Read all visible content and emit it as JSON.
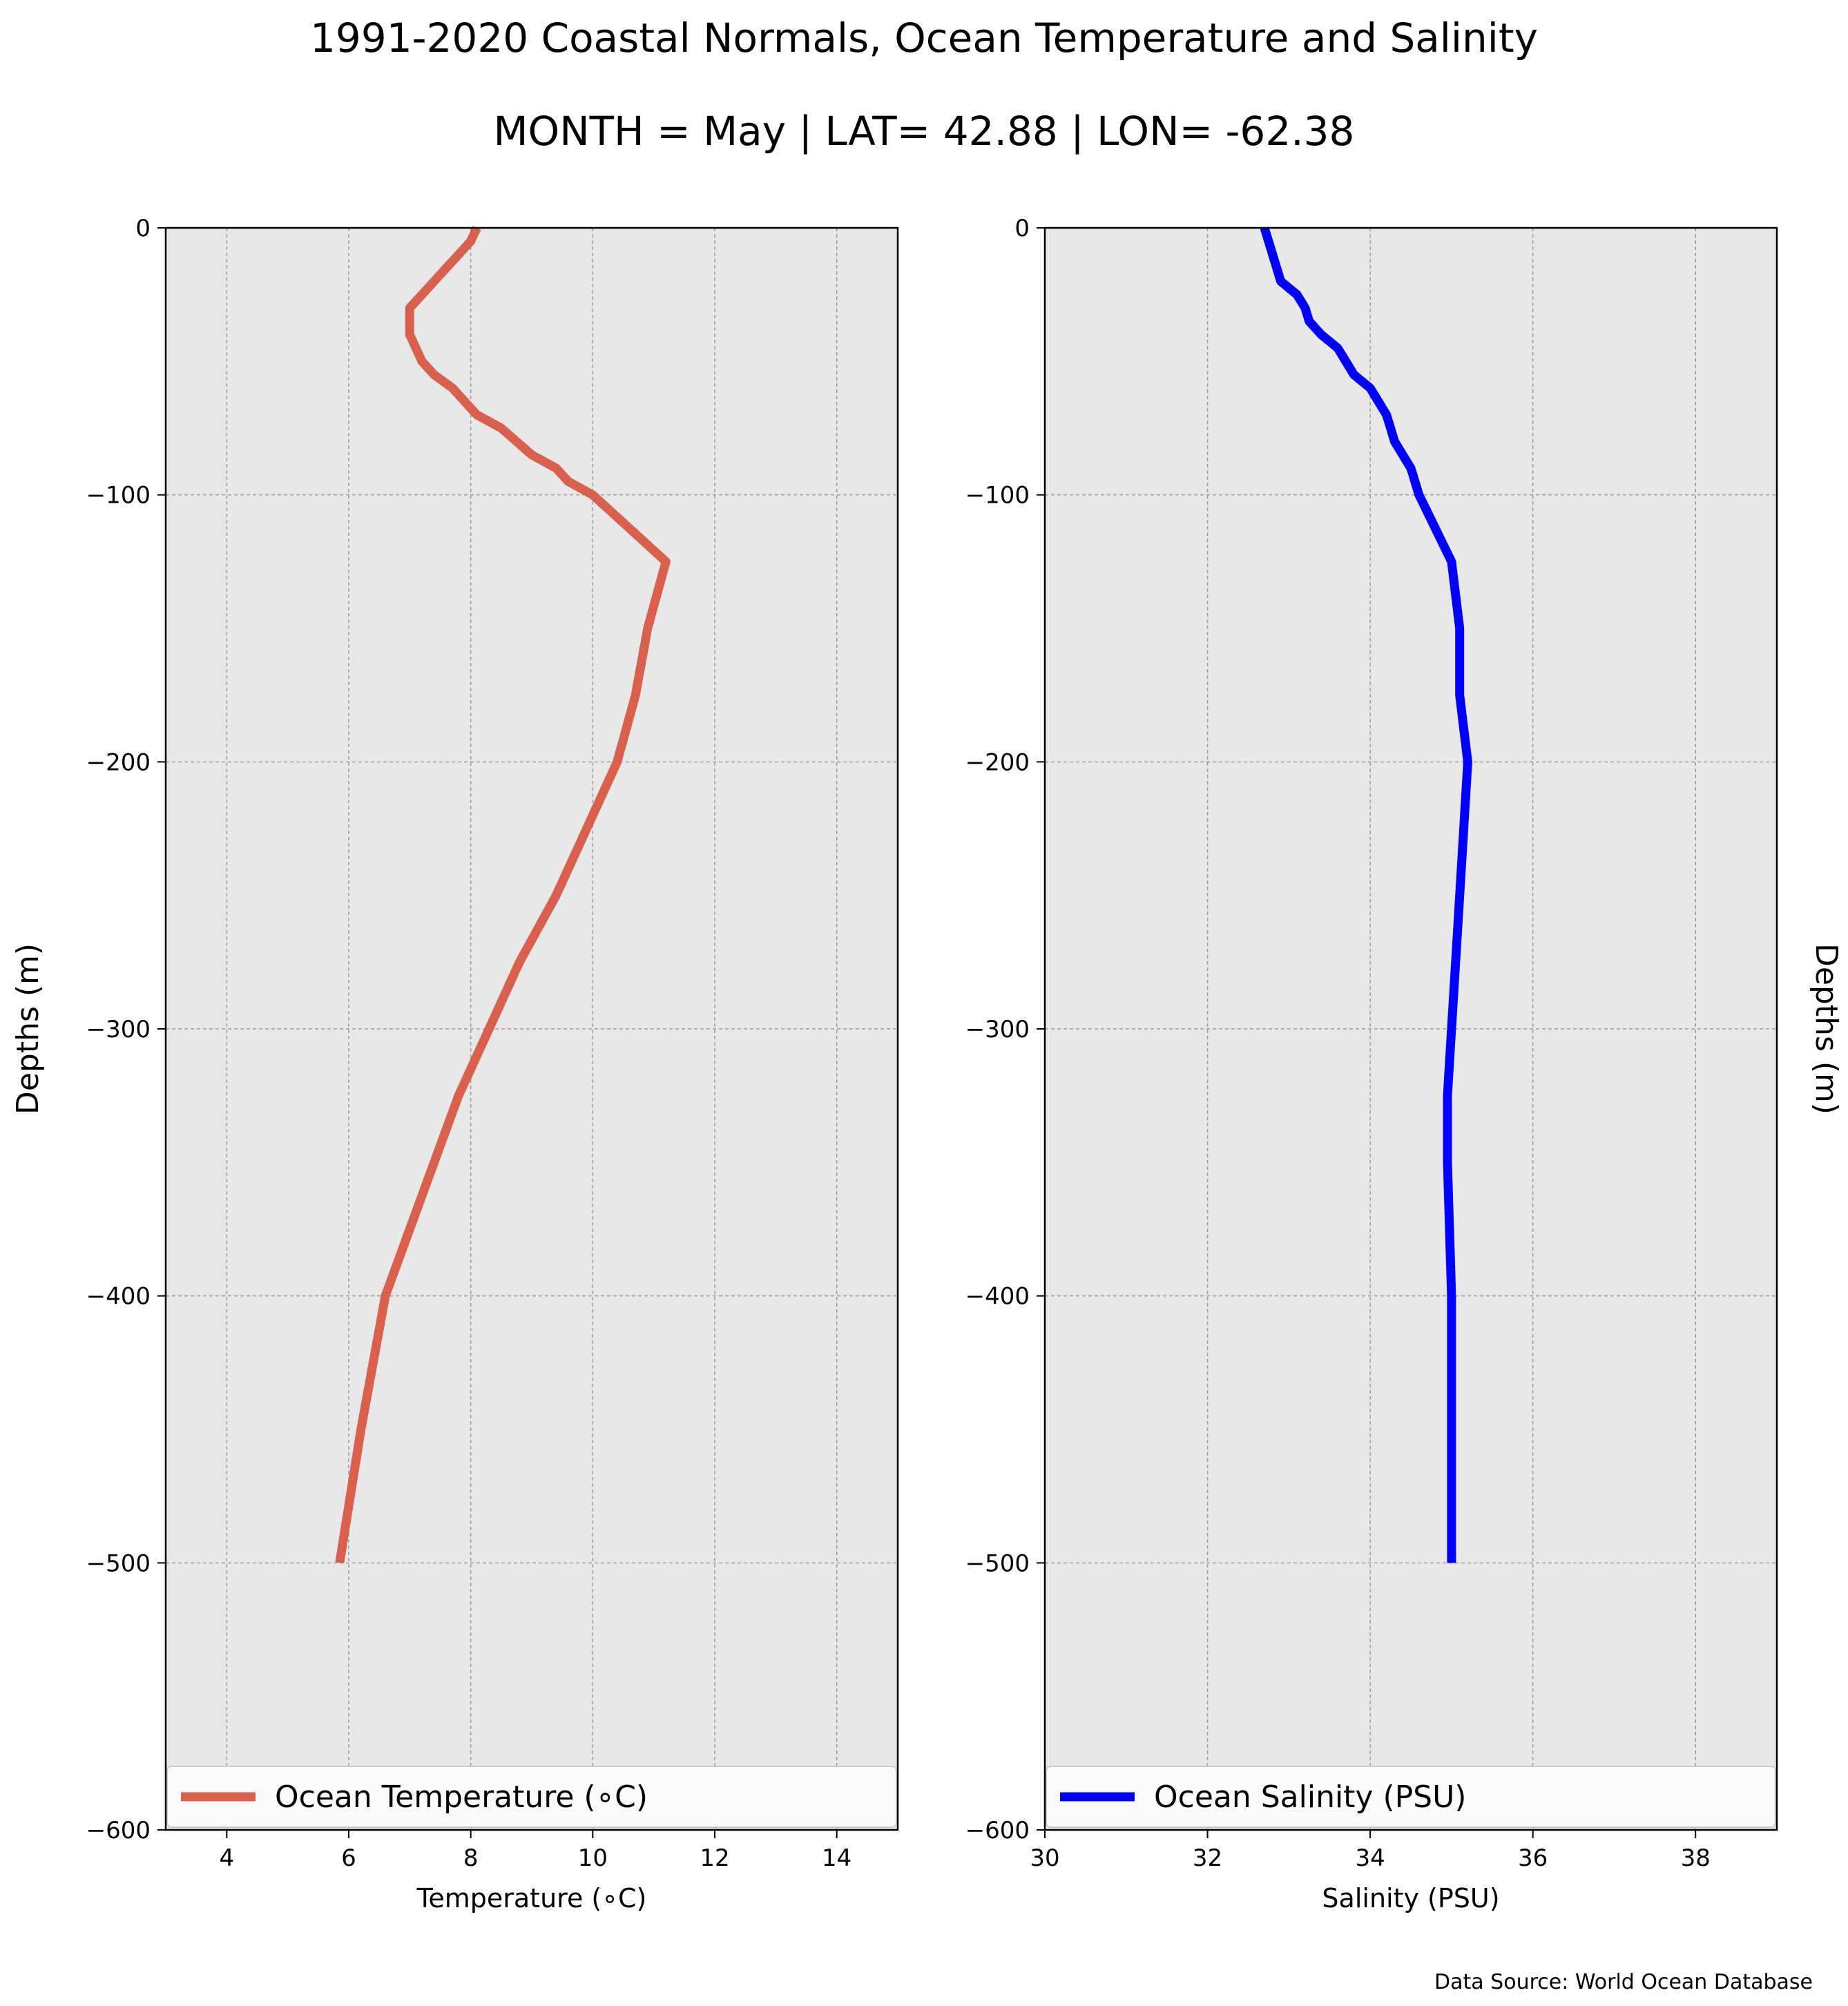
{
  "figure": {
    "title": "1991-2020 Coastal Normals, Ocean Temperature and Salinity",
    "subtitle": "MONTH = May | LAT= 42.88 | LON= -62.38",
    "source": "Data Source: World Ocean Database",
    "colors": {
      "panel_bg": "#e8e8e8",
      "grid": "#9a9a9a"
    }
  },
  "chart_data": [
    {
      "type": "line",
      "xlabel": "Temperature (∘C)",
      "ylabel": "Depths (m)",
      "xlim": [
        3,
        15
      ],
      "ylim": [
        -600,
        0
      ],
      "xticks": [
        4,
        6,
        8,
        10,
        12,
        14
      ],
      "yticks": [
        0,
        -100,
        -200,
        -300,
        -400,
        -500,
        -600
      ],
      "grid": true,
      "legend_position": "bottom",
      "series": [
        {
          "name": "Ocean Temperature (∘C)",
          "color": "#d9604c",
          "x": [
            8.1,
            8.0,
            7.8,
            7.6,
            7.2,
            7.0,
            7.0,
            7.1,
            7.2,
            7.4,
            7.7,
            8.1,
            8.5,
            9.0,
            9.4,
            9.6,
            10.0,
            11.2,
            10.9,
            10.7,
            10.4,
            9.9,
            9.4,
            8.8,
            8.3,
            7.8,
            7.0,
            6.6,
            6.2,
            5.85
          ],
          "y": [
            0,
            -5,
            -10,
            -15,
            -25,
            -30,
            -40,
            -45,
            -50,
            -55,
            -60,
            -70,
            -75,
            -85,
            -90,
            -95,
            -100,
            -125,
            -150,
            -175,
            -200,
            -225,
            -250,
            -275,
            -300,
            -325,
            -375,
            -400,
            -450,
            -500
          ]
        }
      ]
    },
    {
      "type": "line",
      "xlabel": "Salinity (PSU)",
      "ylabel": "Depths (m)",
      "xlim": [
        30,
        39
      ],
      "ylim": [
        -600,
        0
      ],
      "xticks": [
        30,
        32,
        34,
        36,
        38
      ],
      "yticks": [
        0,
        -100,
        -200,
        -300,
        -400,
        -500,
        -600
      ],
      "grid": true,
      "legend_position": "bottom",
      "series": [
        {
          "name": "Ocean Salinity (PSU)",
          "color": "#0000ff",
          "x": [
            32.7,
            32.75,
            32.8,
            32.85,
            32.9,
            33.1,
            33.2,
            33.25,
            33.4,
            33.6,
            33.7,
            33.8,
            34.0,
            34.1,
            34.2,
            34.25,
            34.3,
            34.4,
            34.5,
            34.6,
            35.0,
            35.1,
            35.1,
            35.2,
            35.1,
            35.05,
            35.0,
            34.95,
            34.95,
            35.0,
            35.0,
            35.0
          ],
          "y": [
            0,
            -5,
            -10,
            -15,
            -20,
            -25,
            -30,
            -35,
            -40,
            -45,
            -50,
            -55,
            -60,
            -65,
            -70,
            -75,
            -80,
            -85,
            -90,
            -100,
            -125,
            -150,
            -175,
            -200,
            -250,
            -275,
            -300,
            -325,
            -350,
            -400,
            -450,
            -500
          ]
        }
      ]
    }
  ]
}
